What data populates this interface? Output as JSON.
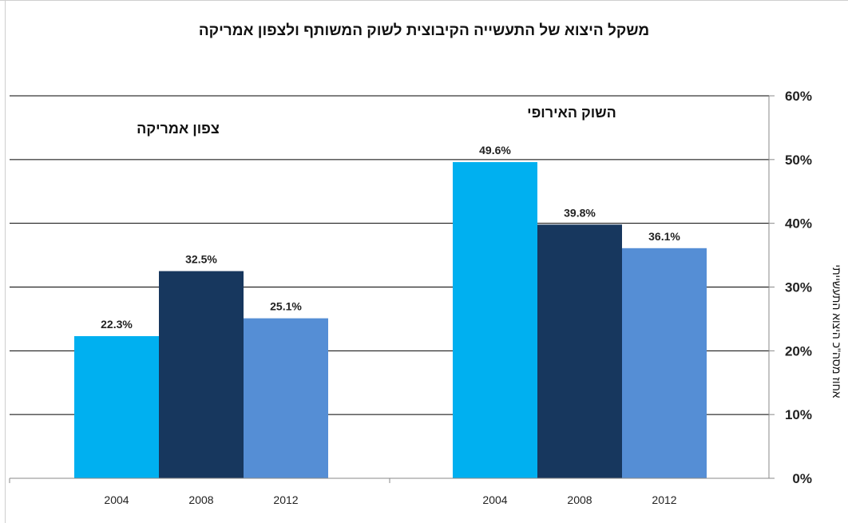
{
  "chart_data": {
    "type": "bar",
    "title": "משקל היצוא של התעשייה הקיבוצית לשוק המשותף ולצפון אמריקה",
    "ylabel": "אחוז מסה\"כ היצוא התעשייתי",
    "ylim": [
      0,
      60
    ],
    "yticks": [
      "0%",
      "10%",
      "20%",
      "30%",
      "40%",
      "50%",
      "60%"
    ],
    "grid": true,
    "groups": [
      {
        "name": "צפון אמריקה",
        "categories": [
          "2004",
          "2008",
          "2012"
        ],
        "values": [
          22.3,
          32.5,
          25.1
        ],
        "labels": [
          "22.3%",
          "32.5%",
          "25.1%"
        ]
      },
      {
        "name": "השוק האירופי",
        "categories": [
          "2004",
          "2008",
          "2012"
        ],
        "values": [
          49.6,
          39.8,
          36.1
        ],
        "labels": [
          "49.6%",
          "39.8%",
          "36.1%"
        ]
      }
    ],
    "colors": [
      "#00B0F0",
      "#17375E",
      "#558ED5"
    ]
  }
}
